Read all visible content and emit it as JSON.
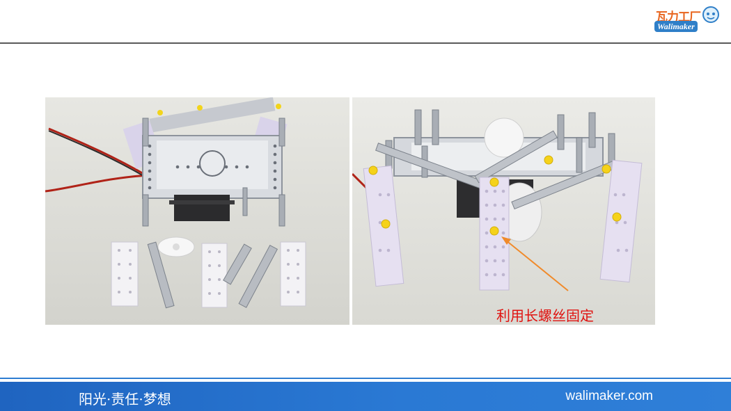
{
  "logo": {
    "chinese": "瓦力工厂",
    "english": "Walimaker"
  },
  "photos": {
    "left": {
      "icon": "robot-kit-parts-photo"
    },
    "right": {
      "icon": "assembled-robot-photo",
      "callout_text": "利用长螺丝固定"
    }
  },
  "footer": {
    "slogan": "阳光·责任·梦想",
    "website": "walimaker.com"
  },
  "colors": {
    "accent_blue": "#2a79d4",
    "callout_red": "#e0120f",
    "logo_orange": "#e8651e"
  }
}
